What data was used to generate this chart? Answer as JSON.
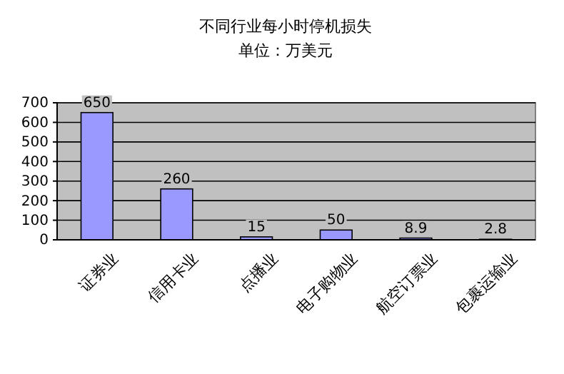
{
  "chart_data": {
    "type": "bar",
    "title": "不同行业每小时停机损失",
    "subtitle": "单位：万美元",
    "categories": [
      "证券业",
      "信用卡业",
      "点播业",
      "电子购物业",
      "航空订票业",
      "包裹运输业"
    ],
    "values": [
      650,
      260,
      15,
      50,
      8.9,
      2.8
    ],
    "color": "#9999ff",
    "ylim": [
      0,
      700
    ],
    "yticks": [
      0,
      100,
      200,
      300,
      400,
      500,
      600,
      700
    ],
    "grid": "y",
    "data_labels": true
  }
}
